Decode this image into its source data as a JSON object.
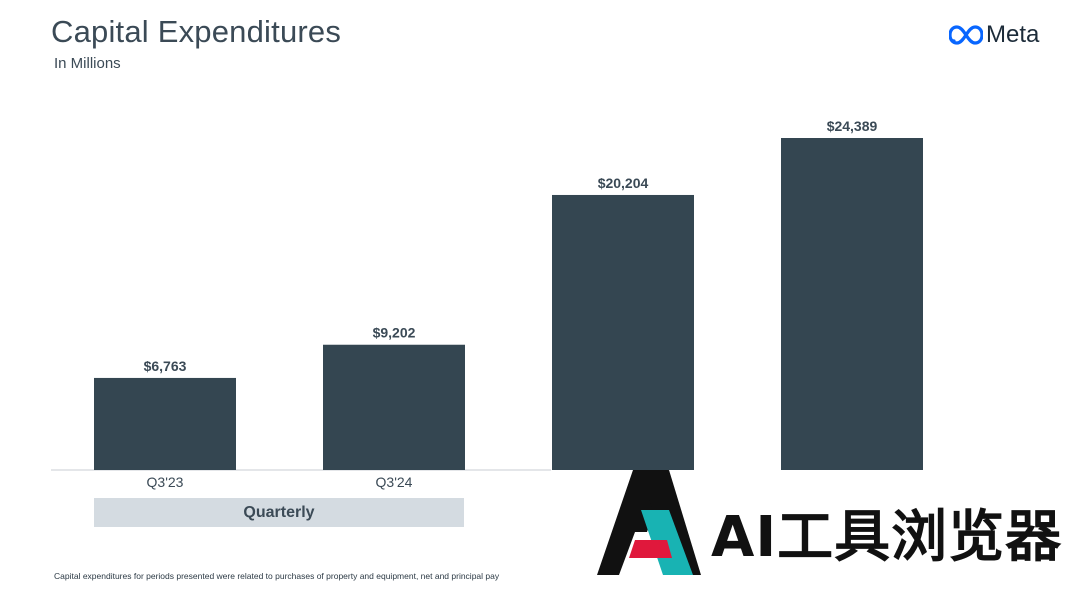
{
  "header": {
    "title": "Capital Expenditures",
    "subtitle": "In Millions",
    "brand_name": "Meta"
  },
  "group": {
    "label": "Quarterly"
  },
  "footnote": "Capital expenditures for periods presented were related to purchases of property and equipment, net and principal pay",
  "watermark": {
    "text": "AI工具浏览器"
  },
  "colors": {
    "bar": "#344651",
    "group_box": "#d4dbe1",
    "text": "#3b4a56"
  },
  "chart_data": {
    "type": "bar",
    "title": "Capital Expenditures",
    "subtitle": "In Millions",
    "categories": [
      "Q3'23",
      "Q3'24",
      "",
      ""
    ],
    "values": [
      6763,
      9202,
      20204,
      24389
    ],
    "value_labels": [
      "$6,763",
      "$9,202",
      "$20,204",
      "$24,389"
    ],
    "ylim": [
      0,
      24389
    ],
    "grid": false,
    "legend": "none"
  }
}
